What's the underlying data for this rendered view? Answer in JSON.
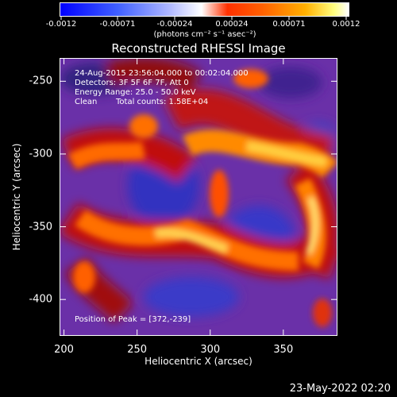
{
  "colorbar": {
    "tick_labels": [
      "-0.0012",
      "-0.00071",
      "-0.00024",
      "0.00024",
      "0.00071",
      "0.0012"
    ],
    "unit": "(photons cm⁻² s⁻¹ asec⁻²)"
  },
  "title": "Reconstructed RHESSI Image",
  "info": {
    "time_range": "24-Aug-2015 23:56:04.000 to 00:02:04.000",
    "detectors": "Detectors: 3F 5F 6F 7F, Att 0",
    "energy": "Energy Range: 25.0 - 50.0 keV",
    "algorithm": "Clean",
    "counts": "Total counts: 1.58E+04"
  },
  "peak_text": "Position of Peak = [372,-239]",
  "axes": {
    "xlabel": "Heliocentric X (arcsec)",
    "ylabel": "Heliocentric Y (arcsec)",
    "xlim": [
      197,
      387
    ],
    "ylim": [
      -425,
      -234
    ],
    "x_ticks": [
      200,
      250,
      300,
      350
    ],
    "y_ticks": [
      -250,
      -300,
      -350,
      -400
    ]
  },
  "timestamp": "23-May-2022 02:20"
}
